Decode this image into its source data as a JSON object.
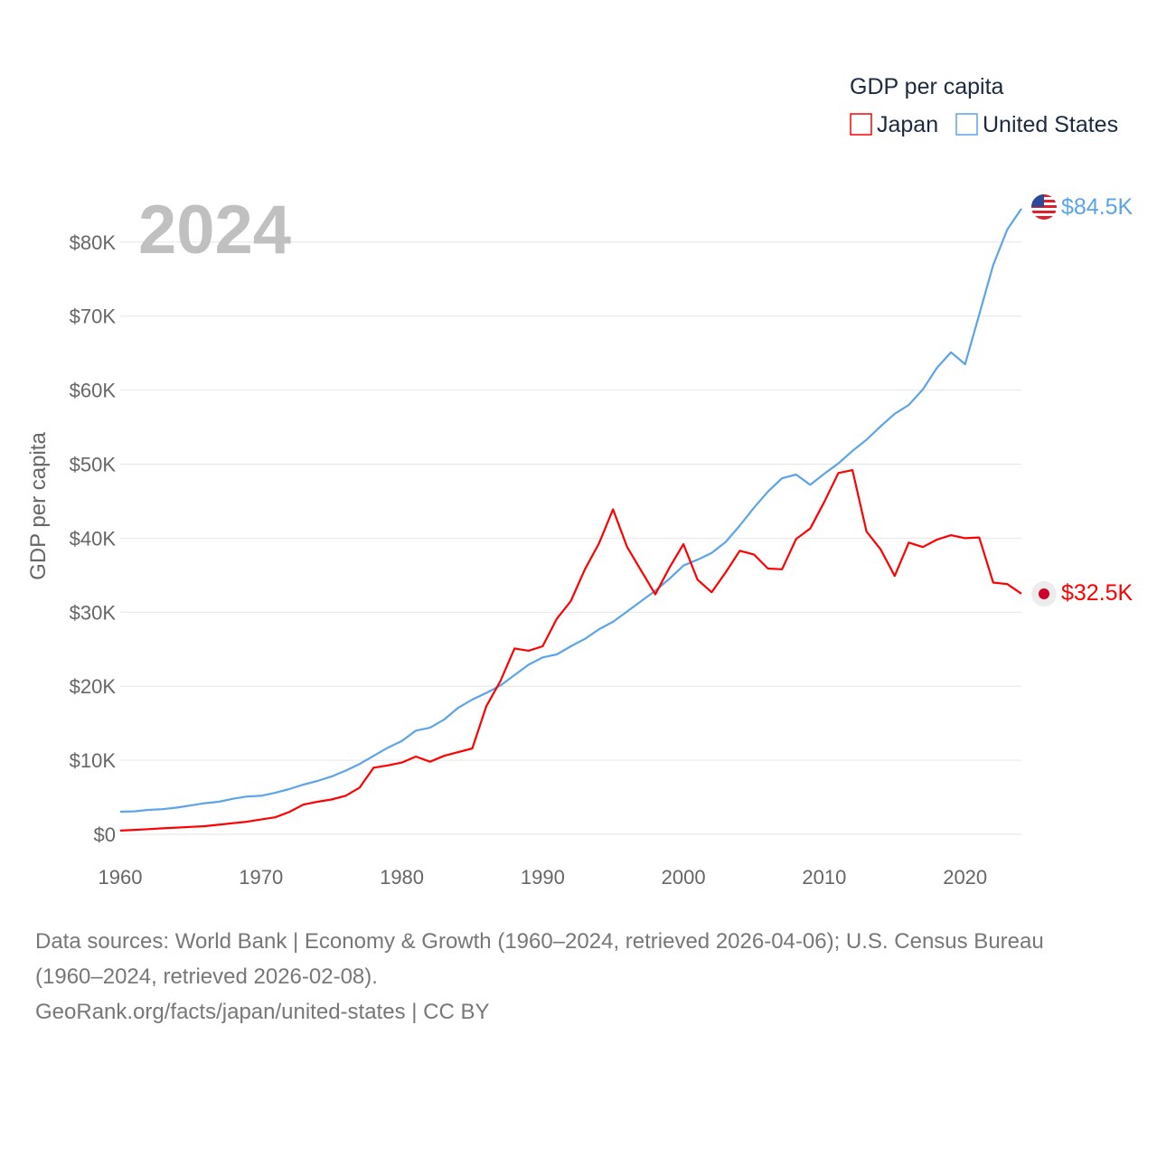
{
  "chart_data": {
    "type": "line",
    "legend_title": "GDP per capita",
    "legend_placement": "top-right",
    "ylabel": "GDP per capita",
    "xlabel": "",
    "year_label": "2024",
    "xlim": [
      1960,
      2024
    ],
    "ylim": [
      0,
      85
    ],
    "y_unit": "thousand USD",
    "x_ticks": [
      1960,
      1970,
      1980,
      1990,
      2000,
      2010,
      2020
    ],
    "y_ticks": [
      0,
      10,
      20,
      30,
      40,
      50,
      60,
      70,
      80
    ],
    "y_tick_labels": [
      "$0",
      "$10K",
      "$20K",
      "$30K",
      "$40K",
      "$50K",
      "$60K",
      "$70K",
      "$80K"
    ],
    "grid": true,
    "x": [
      1960,
      1961,
      1962,
      1963,
      1964,
      1965,
      1966,
      1967,
      1968,
      1969,
      1970,
      1971,
      1972,
      1973,
      1974,
      1975,
      1976,
      1977,
      1978,
      1979,
      1980,
      1981,
      1982,
      1983,
      1984,
      1985,
      1986,
      1987,
      1988,
      1989,
      1990,
      1991,
      1992,
      1993,
      1994,
      1995,
      1996,
      1997,
      1998,
      1999,
      2000,
      2001,
      2002,
      2003,
      2004,
      2005,
      2006,
      2007,
      2008,
      2009,
      2010,
      2011,
      2012,
      2013,
      2014,
      2015,
      2016,
      2017,
      2018,
      2019,
      2020,
      2021,
      2022,
      2023,
      2024
    ],
    "series": [
      {
        "name": "Japan",
        "color": "#ff0000",
        "end_label": "$32.5K",
        "marker": "japan-flag",
        "values": [
          0.5,
          0.6,
          0.7,
          0.8,
          0.9,
          1.0,
          1.1,
          1.3,
          1.5,
          1.7,
          2.0,
          2.3,
          3.0,
          4.0,
          4.4,
          4.7,
          5.2,
          6.3,
          9.0,
          9.3,
          9.7,
          10.5,
          9.8,
          10.6,
          11.1,
          11.6,
          17.3,
          20.7,
          25.1,
          24.8,
          25.4,
          29.1,
          31.5,
          35.8,
          39.3,
          43.9,
          38.8,
          35.6,
          32.4,
          36.0,
          39.2,
          34.4,
          32.7,
          35.4,
          38.3,
          37.8,
          35.9,
          35.8,
          39.9,
          41.3,
          44.9,
          48.8,
          49.2,
          40.9,
          38.5,
          34.9,
          39.4,
          38.8,
          39.8,
          40.4,
          40.0,
          40.1,
          34.0,
          33.8,
          32.5
        ]
      },
      {
        "name": "United States",
        "color": "#5ba4e8",
        "end_label": "$84.5K",
        "marker": "us-flag",
        "values": [
          3.05,
          3.1,
          3.3,
          3.4,
          3.6,
          3.9,
          4.2,
          4.4,
          4.8,
          5.1,
          5.2,
          5.6,
          6.1,
          6.7,
          7.2,
          7.8,
          8.6,
          9.5,
          10.6,
          11.7,
          12.6,
          14.0,
          14.4,
          15.5,
          17.1,
          18.2,
          19.1,
          20.1,
          21.5,
          22.9,
          23.9,
          24.3,
          25.4,
          26.4,
          27.7,
          28.7,
          30.1,
          31.5,
          32.9,
          34.5,
          36.3,
          37.1,
          38.0,
          39.5,
          41.7,
          44.1,
          46.3,
          48.1,
          48.6,
          47.2,
          48.7,
          50.1,
          51.8,
          53.3,
          55.1,
          56.8,
          58.0,
          60.1,
          63.0,
          65.1,
          63.5,
          70.2,
          76.9,
          81.7,
          84.5
        ]
      }
    ]
  },
  "footer": {
    "line1": "Data sources: World Bank | Economy & Growth (1960–2024, retrieved 2026-04-06); U.S. Census Bureau",
    "line2": "(1960–2024, retrieved 2026-02-08).",
    "line3": "GeoRank.org/facts/japan/united-states | CC BY"
  }
}
